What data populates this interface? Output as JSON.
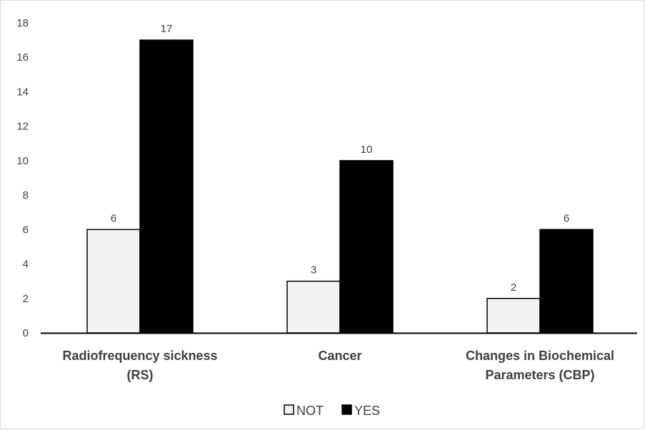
{
  "chart_data": {
    "type": "bar",
    "categories": [
      [
        "Radiofrequency sickness",
        "(RS)"
      ],
      [
        "Cancer"
      ],
      [
        "Changes in Biochemical",
        "Parameters (CBP)"
      ]
    ],
    "series": [
      {
        "name": "NOT",
        "values": [
          6,
          3,
          2
        ],
        "color": "#f2f2f2"
      },
      {
        "name": "YES",
        "values": [
          17,
          10,
          6
        ],
        "color": "#000000"
      }
    ],
    "ylim": [
      0,
      18
    ],
    "yticks": [
      0,
      2,
      4,
      6,
      8,
      10,
      12,
      14,
      16,
      18
    ],
    "grid": false,
    "legend": "bottom",
    "data_labels": true
  }
}
